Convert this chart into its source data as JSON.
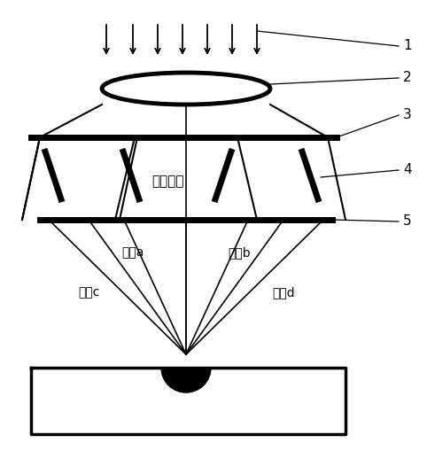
{
  "background_color": "#ffffff",
  "line_color": "#000000",
  "fig_width": 4.82,
  "fig_height": 5.35,
  "dpi": 100,
  "labels": {
    "central": "中央光束",
    "beam_a": "光束a",
    "beam_b": "光束b",
    "beam_c": "光束c",
    "beam_d": "光束d"
  },
  "numbers": [
    "1",
    "2",
    "3",
    "4",
    "5"
  ]
}
